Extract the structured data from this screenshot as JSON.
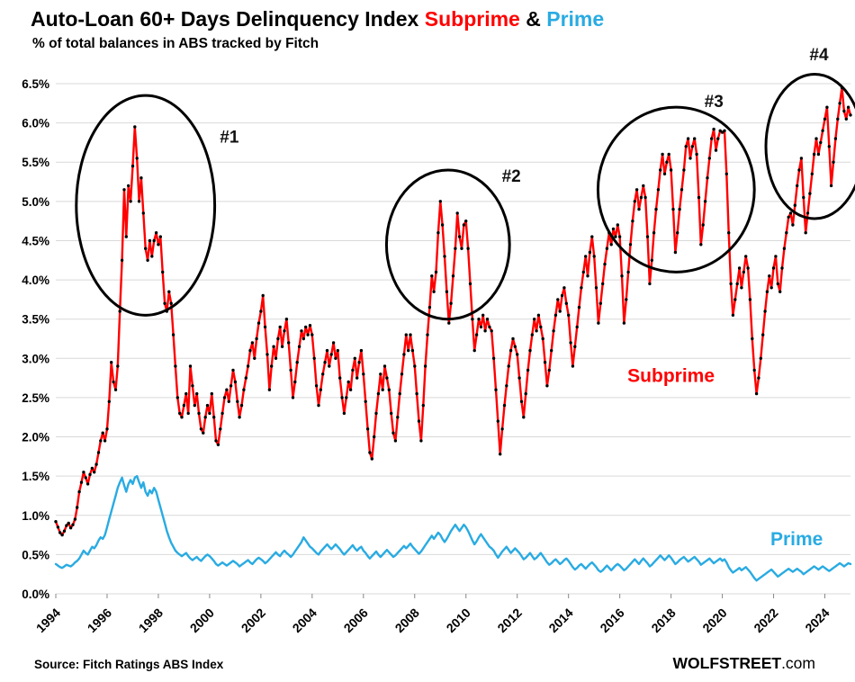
{
  "header": {
    "title_main": "Auto-Loan 60+ Days Delinquency Index",
    "title_subprime": "Subprime",
    "title_amp": "&",
    "title_prime": "Prime",
    "subtitle": "% of total balances in ABS tracked by Fitch"
  },
  "footer": {
    "source": "Source: Fitch Ratings ABS Index",
    "brand_bold": "WOLFSTREET",
    "brand_rest": ".com"
  },
  "colors": {
    "subprime": "#ff0000",
    "prime": "#29abe2",
    "marker": "#000000",
    "grid": "#d9d9d9",
    "annotation": "#000000"
  },
  "chart_data": {
    "type": "line",
    "title": "Auto-Loan 60+ Days Delinquency Index Subprime & Prime",
    "subtitle": "% of total balances in ABS tracked by Fitch",
    "legend": "inline-labels",
    "grid": "horizontal-only",
    "x_axis": {
      "min": 1994,
      "max": 2025,
      "ticks": [
        1994,
        1996,
        1998,
        2000,
        2002,
        2004,
        2006,
        2008,
        2010,
        2012,
        2014,
        2016,
        2018,
        2020,
        2022,
        2024
      ]
    },
    "y_axis": {
      "min": 0,
      "max": 6.5,
      "step": 0.5,
      "tick_labels": [
        "0.0%",
        "0.5%",
        "1.0%",
        "1.5%",
        "2.0%",
        "2.5%",
        "3.0%",
        "3.5%",
        "4.0%",
        "4.5%",
        "5.0%",
        "5.5%",
        "6.0%",
        "6.5%"
      ],
      "tick_values": [
        0,
        0.5,
        1,
        1.5,
        2,
        2.5,
        3,
        3.5,
        4,
        4.5,
        5,
        5.5,
        6,
        6.5
      ]
    },
    "series": [
      {
        "name": "Subprime",
        "color": "#ff0000",
        "markers": true,
        "x_start": 1994,
        "points_per_year": 12,
        "values": [
          0.92,
          0.85,
          0.78,
          0.75,
          0.8,
          0.87,
          0.9,
          0.84,
          0.88,
          0.95,
          1.1,
          1.3,
          1.42,
          1.55,
          1.48,
          1.4,
          1.52,
          1.6,
          1.55,
          1.65,
          1.8,
          1.95,
          2.05,
          1.95,
          2.1,
          2.45,
          2.95,
          2.7,
          2.6,
          2.9,
          3.6,
          4.25,
          5.15,
          4.55,
          5.2,
          5.0,
          5.45,
          5.95,
          5.55,
          5.0,
          5.3,
          4.85,
          4.4,
          4.25,
          4.5,
          4.3,
          4.5,
          4.6,
          4.45,
          4.55,
          4.1,
          3.7,
          3.6,
          3.85,
          3.7,
          3.3,
          2.9,
          2.5,
          2.3,
          2.25,
          2.4,
          2.55,
          2.3,
          2.9,
          2.65,
          2.4,
          2.55,
          2.3,
          2.1,
          2.05,
          2.25,
          2.4,
          2.3,
          2.55,
          2.25,
          1.95,
          1.9,
          2.1,
          2.3,
          2.5,
          2.6,
          2.45,
          2.65,
          2.85,
          2.7,
          2.45,
          2.25,
          2.4,
          2.6,
          2.75,
          2.9,
          3.1,
          3.2,
          3.0,
          3.25,
          3.45,
          3.6,
          3.8,
          3.4,
          3.05,
          2.6,
          2.9,
          3.15,
          3.0,
          3.25,
          3.4,
          3.15,
          3.35,
          3.5,
          3.2,
          2.85,
          2.5,
          2.7,
          2.95,
          3.15,
          3.35,
          3.25,
          3.4,
          3.3,
          3.42,
          3.3,
          3.0,
          2.65,
          2.4,
          2.6,
          2.8,
          2.95,
          3.1,
          2.9,
          3.05,
          3.2,
          3.0,
          3.1,
          2.75,
          2.5,
          2.3,
          2.5,
          2.7,
          2.6,
          2.85,
          3.0,
          2.75,
          2.95,
          3.1,
          2.8,
          2.45,
          2.1,
          1.8,
          1.72,
          2.0,
          2.3,
          2.55,
          2.8,
          2.6,
          2.9,
          2.75,
          2.6,
          2.3,
          2.05,
          1.95,
          2.25,
          2.55,
          2.8,
          3.05,
          3.3,
          3.1,
          3.3,
          3.1,
          2.9,
          2.55,
          2.2,
          1.95,
          2.4,
          2.9,
          3.3,
          3.65,
          4.05,
          3.85,
          4.1,
          4.6,
          5.0,
          4.7,
          4.3,
          3.85,
          3.45,
          3.7,
          4.05,
          4.4,
          4.85,
          4.55,
          4.4,
          4.7,
          4.75,
          4.4,
          3.95,
          3.5,
          3.1,
          3.3,
          3.5,
          3.4,
          3.55,
          3.35,
          3.5,
          3.4,
          3.35,
          3.0,
          2.6,
          2.2,
          1.78,
          2.1,
          2.4,
          2.65,
          2.9,
          3.1,
          3.25,
          3.15,
          3.05,
          2.75,
          2.45,
          2.25,
          2.55,
          2.85,
          3.1,
          3.3,
          3.5,
          3.35,
          3.55,
          3.4,
          3.25,
          2.95,
          2.65,
          2.85,
          3.1,
          3.35,
          3.55,
          3.75,
          3.6,
          3.8,
          3.9,
          3.7,
          3.55,
          3.2,
          2.9,
          3.15,
          3.4,
          3.65,
          3.9,
          4.1,
          4.3,
          4.05,
          4.35,
          4.55,
          4.3,
          3.9,
          3.45,
          3.7,
          3.95,
          4.2,
          4.4,
          4.6,
          4.45,
          4.65,
          4.55,
          4.7,
          4.55,
          4.05,
          3.45,
          3.75,
          4.1,
          4.45,
          4.75,
          5.0,
          5.15,
          4.9,
          5.05,
          5.2,
          5.05,
          4.55,
          3.95,
          4.25,
          4.6,
          4.9,
          5.15,
          5.4,
          5.6,
          5.35,
          5.5,
          5.6,
          5.4,
          4.9,
          4.35,
          4.6,
          4.9,
          5.15,
          5.4,
          5.7,
          5.8,
          5.55,
          5.7,
          5.8,
          5.6,
          5.05,
          4.45,
          4.7,
          5.0,
          5.3,
          5.55,
          5.8,
          5.92,
          5.65,
          5.8,
          5.9,
          5.88,
          5.9,
          5.35,
          4.6,
          3.95,
          3.55,
          3.75,
          3.95,
          4.15,
          3.9,
          4.1,
          4.3,
          4.15,
          3.75,
          3.25,
          2.85,
          2.55,
          2.75,
          3.0,
          3.3,
          3.6,
          3.85,
          4.05,
          3.9,
          4.15,
          4.3,
          3.95,
          3.85,
          4.15,
          4.4,
          4.6,
          4.8,
          4.85,
          4.7,
          4.95,
          5.2,
          5.4,
          5.55,
          5.05,
          4.6,
          4.85,
          5.1,
          5.35,
          5.6,
          5.8,
          5.6,
          5.75,
          5.9,
          6.05,
          6.2,
          5.7,
          5.2,
          5.5,
          5.8,
          6.05,
          6.25,
          6.45,
          6.15,
          6.05,
          6.2,
          6.1
        ]
      },
      {
        "name": "Prime",
        "color": "#29abe2",
        "markers": false,
        "x_start": 1994,
        "points_per_year": 12,
        "values": [
          0.38,
          0.36,
          0.34,
          0.33,
          0.35,
          0.37,
          0.36,
          0.35,
          0.37,
          0.4,
          0.42,
          0.45,
          0.5,
          0.55,
          0.52,
          0.5,
          0.55,
          0.6,
          0.58,
          0.62,
          0.68,
          0.72,
          0.7,
          0.75,
          0.85,
          0.95,
          1.05,
          1.15,
          1.25,
          1.35,
          1.42,
          1.48,
          1.38,
          1.3,
          1.4,
          1.45,
          1.4,
          1.48,
          1.5,
          1.42,
          1.35,
          1.42,
          1.3,
          1.25,
          1.32,
          1.28,
          1.35,
          1.3,
          1.2,
          1.1,
          1.0,
          0.9,
          0.8,
          0.72,
          0.65,
          0.6,
          0.55,
          0.52,
          0.5,
          0.48,
          0.5,
          0.52,
          0.48,
          0.45,
          0.43,
          0.45,
          0.47,
          0.44,
          0.42,
          0.45,
          0.48,
          0.5,
          0.48,
          0.45,
          0.42,
          0.38,
          0.36,
          0.38,
          0.4,
          0.38,
          0.36,
          0.38,
          0.4,
          0.42,
          0.4,
          0.38,
          0.35,
          0.37,
          0.39,
          0.41,
          0.43,
          0.4,
          0.38,
          0.41,
          0.44,
          0.46,
          0.44,
          0.42,
          0.39,
          0.41,
          0.44,
          0.47,
          0.5,
          0.53,
          0.5,
          0.48,
          0.52,
          0.55,
          0.52,
          0.5,
          0.47,
          0.5,
          0.54,
          0.58,
          0.62,
          0.66,
          0.72,
          0.68,
          0.64,
          0.6,
          0.58,
          0.55,
          0.52,
          0.5,
          0.54,
          0.57,
          0.6,
          0.63,
          0.6,
          0.57,
          0.6,
          0.63,
          0.6,
          0.57,
          0.53,
          0.5,
          0.53,
          0.56,
          0.59,
          0.62,
          0.58,
          0.55,
          0.58,
          0.6,
          0.55,
          0.52,
          0.48,
          0.45,
          0.48,
          0.51,
          0.54,
          0.5,
          0.47,
          0.5,
          0.53,
          0.56,
          0.53,
          0.5,
          0.47,
          0.49,
          0.52,
          0.55,
          0.58,
          0.61,
          0.58,
          0.61,
          0.64,
          0.6,
          0.57,
          0.54,
          0.51,
          0.54,
          0.58,
          0.62,
          0.66,
          0.7,
          0.74,
          0.7,
          0.74,
          0.78,
          0.75,
          0.7,
          0.66,
          0.7,
          0.75,
          0.8,
          0.84,
          0.88,
          0.84,
          0.8,
          0.84,
          0.88,
          0.85,
          0.8,
          0.74,
          0.68,
          0.63,
          0.67,
          0.72,
          0.76,
          0.72,
          0.68,
          0.64,
          0.6,
          0.58,
          0.55,
          0.5,
          0.46,
          0.5,
          0.54,
          0.57,
          0.6,
          0.56,
          0.52,
          0.55,
          0.58,
          0.55,
          0.52,
          0.48,
          0.44,
          0.46,
          0.49,
          0.52,
          0.48,
          0.44,
          0.46,
          0.49,
          0.52,
          0.48,
          0.44,
          0.4,
          0.37,
          0.39,
          0.42,
          0.44,
          0.41,
          0.38,
          0.4,
          0.43,
          0.45,
          0.42,
          0.38,
          0.34,
          0.31,
          0.33,
          0.36,
          0.38,
          0.35,
          0.32,
          0.35,
          0.38,
          0.4,
          0.37,
          0.34,
          0.3,
          0.28,
          0.3,
          0.33,
          0.36,
          0.33,
          0.3,
          0.33,
          0.36,
          0.38,
          0.36,
          0.33,
          0.3,
          0.32,
          0.35,
          0.38,
          0.41,
          0.44,
          0.41,
          0.38,
          0.42,
          0.45,
          0.42,
          0.39,
          0.35,
          0.37,
          0.4,
          0.43,
          0.46,
          0.49,
          0.46,
          0.43,
          0.46,
          0.49,
          0.46,
          0.42,
          0.38,
          0.4,
          0.43,
          0.45,
          0.47,
          0.44,
          0.41,
          0.43,
          0.45,
          0.47,
          0.44,
          0.41,
          0.37,
          0.39,
          0.41,
          0.43,
          0.45,
          0.42,
          0.39,
          0.41,
          0.43,
          0.45,
          0.42,
          0.44,
          0.4,
          0.34,
          0.3,
          0.27,
          0.29,
          0.31,
          0.33,
          0.3,
          0.32,
          0.34,
          0.31,
          0.28,
          0.24,
          0.2,
          0.17,
          0.19,
          0.21,
          0.23,
          0.25,
          0.27,
          0.29,
          0.31,
          0.28,
          0.25,
          0.22,
          0.24,
          0.26,
          0.28,
          0.3,
          0.32,
          0.3,
          0.28,
          0.3,
          0.32,
          0.3,
          0.28,
          0.25,
          0.27,
          0.29,
          0.31,
          0.33,
          0.35,
          0.33,
          0.31,
          0.33,
          0.35,
          0.33,
          0.31,
          0.29,
          0.31,
          0.33,
          0.35,
          0.37,
          0.39,
          0.37,
          0.35,
          0.37,
          0.39,
          0.38
        ]
      }
    ],
    "annotations": {
      "ellipses": [
        {
          "label": "#1",
          "cx": 1997.5,
          "cy": 4.95,
          "rx": 2.7,
          "ry": 1.4,
          "label_x": 2000.4,
          "label_y": 5.75
        },
        {
          "label": "#2",
          "cx": 2009.3,
          "cy": 4.45,
          "rx": 2.4,
          "ry": 0.95,
          "label_x": 2011.4,
          "label_y": 5.25
        },
        {
          "label": "#3",
          "cx": 2018.2,
          "cy": 5.15,
          "rx": 3.05,
          "ry": 1.05,
          "label_x": 2019.3,
          "label_y": 6.2
        },
        {
          "label": "#4",
          "cx": 2023.6,
          "cy": 5.7,
          "rx": 1.9,
          "ry": 0.92,
          "label_x": 2023.4,
          "label_y": 6.8
        }
      ],
      "series_labels": [
        {
          "text": "Subprime",
          "x": 2018.0,
          "y": 2.7,
          "color": "#ff0000"
        },
        {
          "text": "Prime",
          "x": 2022.9,
          "y": 0.62,
          "color": "#29abe2"
        }
      ]
    },
    "source": "Source: Fitch Ratings ABS Index",
    "branding": "WOLFSTREET.com"
  }
}
